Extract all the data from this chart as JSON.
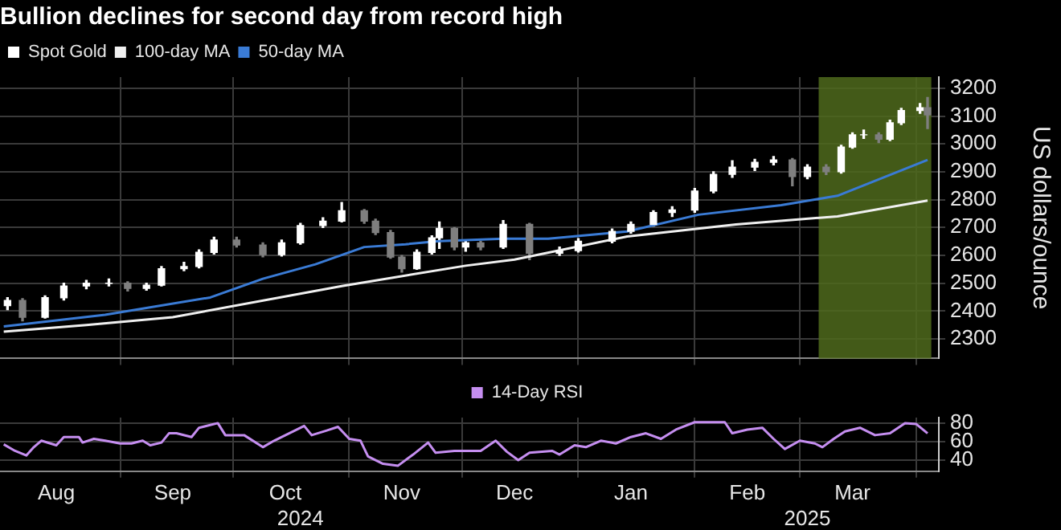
{
  "chart_data": [
    {
      "type": "candlestick",
      "title": "Bullion declines for second day from record high",
      "ylabel": "US dollars/ounce",
      "legend": "top left",
      "grid": true,
      "marker": "none",
      "tick_labels": "y",
      "xlim": [
        "2024-07-31",
        "2025-04-07"
      ],
      "xticks": [
        {
          "value": "2024-09-01",
          "label": null
        },
        {
          "value": "2024-10-01",
          "label": null
        },
        {
          "value": "2024-11-01",
          "label": null
        },
        {
          "value": "2024-12-01",
          "label": null
        },
        {
          "value": "2025-01-01",
          "label": null
        },
        {
          "value": "2025-02-01",
          "label": null
        },
        {
          "value": "2025-03-01",
          "label": null
        },
        {
          "value": "2025-04-01",
          "label": null
        }
      ],
      "ylim": [
        2230,
        3240
      ],
      "yticks": [
        2300,
        2400,
        2500,
        2600,
        2700,
        2800,
        2900,
        3000,
        3100,
        3200
      ],
      "bands": [
        {
          "axis": "x",
          "from": "2025-03-06",
          "to": "2025-04-05",
          "color": "#4f6a1c"
        }
      ],
      "series": [
        {
          "name": "Spot Gold",
          "type": "candlestick",
          "color": "#ffffff",
          "colors": [
            "#ffffff",
            "#7f7f7f",
            "#ffffff",
            "#ffffff",
            "#ffffff",
            "#ffffff",
            "#7f7f7f",
            "#ffffff",
            "#ffffff",
            "#ffffff",
            "#ffffff",
            "#ffffff",
            "#7f7f7f",
            "#7f7f7f",
            "#ffffff",
            "#ffffff",
            "#ffffff",
            "#ffffff",
            "#7f7f7f",
            "#7f7f7f",
            "#7f7f7f",
            "#7f7f7f",
            "#ffffff",
            "#ffffff",
            "#ffffff",
            "#7f7f7f",
            "#ffffff",
            "#7f7f7f",
            "#ffffff",
            "#7f7f7f",
            "#ffffff",
            "#ffffff",
            "#ffffff",
            "#ffffff",
            "#ffffff",
            "#ffffff",
            "#ffffff",
            "#ffffff",
            "#ffffff",
            "#ffffff",
            "#ffffff",
            "#7f7f7f",
            "#ffffff",
            "#7f7f7f",
            "#ffffff",
            "#ffffff",
            "#ffffff",
            "#7f7f7f",
            "#ffffff",
            "#ffffff",
            "#ffffff",
            "#7f7f7f"
          ],
          "x": [
            "2024-08-02",
            "2024-08-06",
            "2024-08-12",
            "2024-08-17",
            "2024-08-23",
            "2024-08-29",
            "2024-09-03",
            "2024-09-08",
            "2024-09-12",
            "2024-09-18",
            "2024-09-22",
            "2024-09-26",
            "2024-10-02",
            "2024-10-09",
            "2024-10-14",
            "2024-10-19",
            "2024-10-25",
            "2024-10-30",
            "2024-11-05",
            "2024-11-08",
            "2024-11-12",
            "2024-11-15",
            "2024-11-19",
            "2024-11-23",
            "2024-11-25",
            "2024-11-29",
            "2024-12-02",
            "2024-12-06",
            "2024-12-12",
            "2024-12-19",
            "2024-12-27",
            "2025-01-01",
            "2025-01-10",
            "2025-01-15",
            "2025-01-21",
            "2025-01-26",
            "2025-02-01",
            "2025-02-06",
            "2025-02-11",
            "2025-02-17",
            "2025-02-22",
            "2025-02-27",
            "2025-03-03",
            "2025-03-08",
            "2025-03-12",
            "2025-03-15",
            "2025-03-18",
            "2025-03-22",
            "2025-03-25",
            "2025-03-28",
            "2025-04-02",
            "2025-04-04"
          ],
          "ohlc": [
            [
              2420,
              2448,
              2405,
              2438
            ],
            [
              2438,
              2445,
              2365,
              2378
            ],
            [
              2378,
              2455,
              2375,
              2448
            ],
            [
              2448,
              2500,
              2440,
              2490
            ],
            [
              2490,
              2510,
              2480,
              2500
            ],
            [
              2500,
              2515,
              2490,
              2500
            ],
            [
              2500,
              2505,
              2472,
              2482
            ],
            [
              2482,
              2500,
              2475,
              2493
            ],
            [
              2493,
              2560,
              2490,
              2552
            ],
            [
              2552,
              2575,
              2545,
              2560
            ],
            [
              2560,
              2620,
              2555,
              2611
            ],
            [
              2611,
              2665,
              2605,
              2655
            ],
            [
              2655,
              2665,
              2630,
              2637
            ],
            [
              2637,
              2645,
              2595,
              2603
            ],
            [
              2603,
              2655,
              2598,
              2645
            ],
            [
              2645,
              2715,
              2640,
              2707
            ],
            [
              2707,
              2735,
              2700,
              2723
            ],
            [
              2723,
              2790,
              2720,
              2760
            ],
            [
              2760,
              2765,
              2715,
              2723
            ],
            [
              2723,
              2730,
              2675,
              2682
            ],
            [
              2682,
              2690,
              2590,
              2594
            ],
            [
              2594,
              2600,
              2540,
              2552
            ],
            [
              2552,
              2620,
              2550,
              2611
            ],
            [
              2611,
              2670,
              2605,
              2663
            ],
            [
              2663,
              2720,
              2625,
              2697
            ],
            [
              2697,
              2700,
              2620,
              2630
            ],
            [
              2630,
              2655,
              2615,
              2645
            ],
            [
              2645,
              2650,
              2620,
              2630
            ],
            [
              2630,
              2725,
              2625,
              2711
            ],
            [
              2711,
              2715,
              2585,
              2608
            ],
            [
              2608,
              2630,
              2600,
              2617
            ],
            [
              2617,
              2660,
              2612,
              2651
            ],
            [
              2651,
              2695,
              2645,
              2686
            ],
            [
              2686,
              2720,
              2680,
              2711
            ],
            [
              2711,
              2760,
              2705,
              2754
            ],
            [
              2754,
              2775,
              2740,
              2763
            ],
            [
              2763,
              2840,
              2755,
              2831
            ],
            [
              2831,
              2900,
              2825,
              2891
            ],
            [
              2891,
              2940,
              2880,
              2917
            ],
            [
              2917,
              2945,
              2905,
              2934
            ],
            [
              2934,
              2955,
              2925,
              2943
            ],
            [
              2943,
              2948,
              2850,
              2883
            ],
            [
              2883,
              2925,
              2875,
              2917
            ],
            [
              2917,
              2925,
              2890,
              2900
            ],
            [
              2900,
              2995,
              2895,
              2989
            ],
            [
              2989,
              3040,
              2985,
              3033
            ],
            [
              3033,
              3050,
              3020,
              3033
            ],
            [
              3033,
              3040,
              3005,
              3017
            ],
            [
              3017,
              3085,
              3012,
              3076
            ],
            [
              3076,
              3128,
              3070,
              3120
            ],
            [
              3120,
              3145,
              3110,
              3130
            ],
            [
              3130,
              3167,
              3055,
              3104
            ]
          ]
        },
        {
          "name": "100-day MA",
          "type": "line",
          "color": "#f0f0f0",
          "x": [
            "2024-08-01",
            "2024-08-23",
            "2024-09-15",
            "2024-10-30",
            "2024-12-02",
            "2024-12-15",
            "2025-01-14",
            "2025-02-12",
            "2025-03-11",
            "2025-04-04"
          ],
          "values": [
            2326,
            2350,
            2378,
            2490,
            2563,
            2585,
            2668,
            2711,
            2740,
            2797
          ]
        },
        {
          "name": "50-day MA",
          "type": "line",
          "color": "#3a7bd5",
          "x": [
            "2024-08-01",
            "2024-08-28",
            "2024-09-25",
            "2024-10-09",
            "2024-10-23",
            "2024-11-05",
            "2024-11-16",
            "2024-11-25",
            "2024-12-12",
            "2024-12-24",
            "2025-01-14",
            "2025-02-02",
            "2025-02-24",
            "2025-03-11",
            "2025-04-04"
          ],
          "values": [
            2345,
            2387,
            2449,
            2516,
            2568,
            2630,
            2640,
            2651,
            2660,
            2660,
            2686,
            2746,
            2780,
            2814,
            2943
          ]
        }
      ]
    },
    {
      "type": "line",
      "legend": "top",
      "grid": true,
      "marker": "none",
      "annotations": [
        "2024",
        "2025"
      ],
      "xlim": [
        "2024-07-31",
        "2025-04-07"
      ],
      "xticks": [
        {
          "value": "2024-08-15",
          "label": "Aug"
        },
        {
          "value": "2024-09-01",
          "label": null
        },
        {
          "value": "2024-09-15",
          "label": "Sep"
        },
        {
          "value": "2024-10-01",
          "label": null
        },
        {
          "value": "2024-10-15",
          "label": "Oct"
        },
        {
          "value": "2024-11-01",
          "label": null
        },
        {
          "value": "2024-11-15",
          "label": "Nov"
        },
        {
          "value": "2024-12-01",
          "label": null
        },
        {
          "value": "2024-12-15",
          "label": "Dec"
        },
        {
          "value": "2025-01-01",
          "label": null
        },
        {
          "value": "2025-01-15",
          "label": "Jan"
        },
        {
          "value": "2025-02-01",
          "label": null
        },
        {
          "value": "2025-02-15",
          "label": "Feb"
        },
        {
          "value": "2025-03-01",
          "label": null
        },
        {
          "value": "2025-03-15",
          "label": "Mar"
        },
        {
          "value": "2025-04-01",
          "label": null
        }
      ],
      "ylim": [
        28,
        86
      ],
      "yticks": [
        40,
        60,
        80
      ],
      "series": [
        {
          "name": "14-Day RSI",
          "color": "#c58ef0",
          "x": [
            "2024-08-01",
            "2024-08-04",
            "2024-08-07",
            "2024-08-09",
            "2024-08-11",
            "2024-08-15",
            "2024-08-17",
            "2024-08-21",
            "2024-08-22",
            "2024-08-25",
            "2024-08-28",
            "2024-09-01",
            "2024-09-04",
            "2024-09-07",
            "2024-09-09",
            "2024-09-12",
            "2024-09-14",
            "2024-09-16",
            "2024-09-20",
            "2024-09-22",
            "2024-09-27",
            "2024-09-29",
            "2024-10-04",
            "2024-10-09",
            "2024-10-12",
            "2024-10-16",
            "2024-10-20",
            "2024-10-22",
            "2024-10-26",
            "2024-10-29",
            "2024-11-01",
            "2024-11-04",
            "2024-11-06",
            "2024-11-10",
            "2024-11-14",
            "2024-11-18",
            "2024-11-22",
            "2024-11-24",
            "2024-11-29",
            "2024-12-06",
            "2024-12-10",
            "2024-12-13",
            "2024-12-16",
            "2024-12-19",
            "2024-12-25",
            "2024-12-27",
            "2024-12-31",
            "2025-01-03",
            "2025-01-07",
            "2025-01-11",
            "2025-01-15",
            "2025-01-19",
            "2025-01-23",
            "2025-01-27",
            "2025-02-01",
            "2025-02-05",
            "2025-02-09",
            "2025-02-11",
            "2025-02-15",
            "2025-02-19",
            "2025-02-22",
            "2025-02-25",
            "2025-03-01",
            "2025-03-05",
            "2025-03-07",
            "2025-03-10",
            "2025-03-13",
            "2025-03-17",
            "2025-03-21",
            "2025-03-25",
            "2025-03-29",
            "2025-04-01",
            "2025-04-04"
          ],
          "values": [
            57,
            50,
            45,
            54,
            61,
            56,
            65,
            65,
            59,
            63,
            61,
            58,
            58,
            61,
            56,
            59,
            69,
            69,
            65,
            75,
            80,
            67,
            67,
            54,
            61,
            69,
            77,
            67,
            72,
            76,
            63,
            61,
            44,
            36,
            34,
            46,
            59,
            48,
            50,
            50,
            61,
            49,
            40,
            48,
            50,
            46,
            56,
            54,
            61,
            58,
            65,
            69,
            63,
            73,
            81,
            81,
            81,
            69,
            73,
            75,
            63,
            52,
            61,
            58,
            54,
            63,
            71,
            75,
            67,
            69,
            80,
            79,
            69
          ]
        }
      ]
    }
  ]
}
